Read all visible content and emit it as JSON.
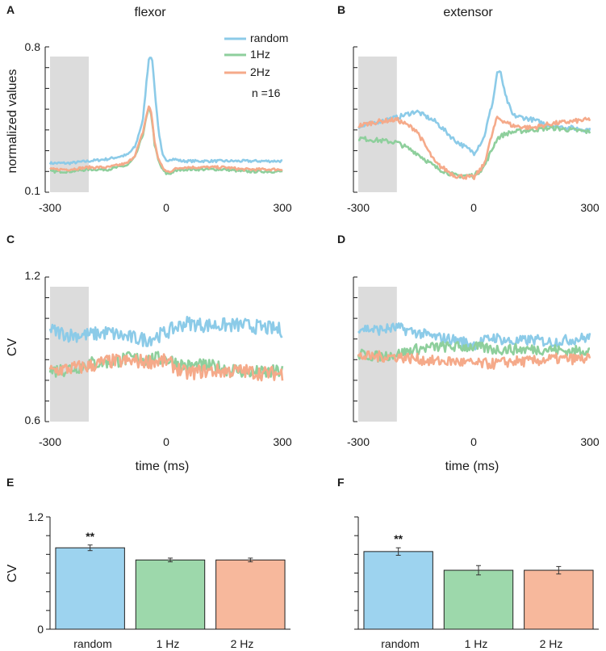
{
  "colors": {
    "random": "#8ccbe8",
    "hz1": "#8ecf9c",
    "hz2": "#f5aa8a",
    "shade": "#dcdcdc",
    "axis": "#1a1a1a",
    "bar_random": "#9dd3ef",
    "bar_1hz": "#9dd8ab",
    "bar_2hz": "#f7b89c"
  },
  "titles": {
    "left": "flexor",
    "right": "extensor"
  },
  "panel_letters": [
    "A",
    "B",
    "C",
    "D",
    "E",
    "F"
  ],
  "legend": {
    "random": "random",
    "hz1": "1Hz",
    "hz2": "2Hz",
    "n": "n =16"
  },
  "ylabels": {
    "top": "normalized values",
    "mid": "CV",
    "bottom": "CV"
  },
  "xlabel_time": "time (ms)",
  "ticks": {
    "x_time": [
      "-300",
      "0",
      "300"
    ],
    "top_y": [
      "0.8",
      "0.1"
    ],
    "mid_y": [
      "1.2",
      "0.6"
    ],
    "bottom_y": [
      "1.2",
      "0"
    ],
    "bar_categories": [
      "random",
      "1 Hz",
      "2 Hz"
    ]
  },
  "chart_data": [
    {
      "id": "A",
      "type": "line",
      "title": "flexor",
      "ylabel": "normalized values",
      "xlim": [
        -300,
        300
      ],
      "ylim": [
        0.1,
        0.8
      ],
      "shaded_region": [
        -300,
        -200
      ],
      "series": [
        {
          "name": "random",
          "x": [
            -300,
            -250,
            -200,
            -150,
            -100,
            -80,
            -60,
            -50,
            -45,
            -40,
            -35,
            -30,
            -20,
            -10,
            0,
            10,
            20,
            40,
            60,
            100,
            150,
            200,
            250,
            300
          ],
          "values": [
            0.24,
            0.24,
            0.25,
            0.26,
            0.28,
            0.32,
            0.45,
            0.65,
            0.74,
            0.76,
            0.72,
            0.6,
            0.4,
            0.28,
            0.25,
            0.26,
            0.26,
            0.25,
            0.25,
            0.25,
            0.25,
            0.25,
            0.25,
            0.25
          ]
        },
        {
          "name": "1Hz",
          "x": [
            -300,
            -250,
            -200,
            -150,
            -100,
            -80,
            -60,
            -50,
            -45,
            -40,
            -35,
            -30,
            -20,
            -10,
            0,
            10,
            20,
            40,
            60,
            100,
            150,
            200,
            250,
            300
          ],
          "values": [
            0.2,
            0.2,
            0.21,
            0.21,
            0.23,
            0.27,
            0.38,
            0.47,
            0.5,
            0.49,
            0.42,
            0.33,
            0.25,
            0.21,
            0.19,
            0.19,
            0.2,
            0.21,
            0.21,
            0.21,
            0.21,
            0.2,
            0.2,
            0.2
          ]
        },
        {
          "name": "2Hz",
          "x": [
            -300,
            -250,
            -200,
            -150,
            -100,
            -80,
            -60,
            -50,
            -45,
            -40,
            -35,
            -30,
            -20,
            -10,
            0,
            10,
            20,
            40,
            60,
            100,
            150,
            200,
            250,
            300
          ],
          "values": [
            0.21,
            0.21,
            0.22,
            0.22,
            0.24,
            0.28,
            0.39,
            0.48,
            0.51,
            0.5,
            0.43,
            0.34,
            0.26,
            0.22,
            0.2,
            0.2,
            0.21,
            0.22,
            0.22,
            0.22,
            0.22,
            0.21,
            0.21,
            0.21
          ]
        }
      ]
    },
    {
      "id": "B",
      "type": "line",
      "title": "extensor",
      "xlim": [
        -300,
        300
      ],
      "ylim": [
        0.1,
        0.8
      ],
      "shaded_region": [
        -300,
        -200
      ],
      "series": [
        {
          "name": "random",
          "x": [
            -300,
            -250,
            -200,
            -150,
            -100,
            -50,
            0,
            25,
            50,
            60,
            70,
            80,
            100,
            150,
            200,
            250,
            300
          ],
          "values": [
            0.41,
            0.44,
            0.46,
            0.49,
            0.44,
            0.35,
            0.29,
            0.36,
            0.55,
            0.68,
            0.67,
            0.57,
            0.47,
            0.45,
            0.42,
            0.41,
            0.4
          ]
        },
        {
          "name": "1Hz",
          "x": [
            -300,
            -250,
            -200,
            -150,
            -100,
            -50,
            0,
            25,
            50,
            60,
            70,
            80,
            100,
            150,
            200,
            250,
            300
          ],
          "values": [
            0.36,
            0.35,
            0.34,
            0.29,
            0.22,
            0.18,
            0.18,
            0.22,
            0.32,
            0.36,
            0.37,
            0.38,
            0.39,
            0.4,
            0.41,
            0.4,
            0.39
          ]
        },
        {
          "name": "2Hz",
          "x": [
            -300,
            -250,
            -200,
            -150,
            -100,
            -50,
            0,
            25,
            50,
            60,
            70,
            80,
            100,
            150,
            200,
            250,
            300
          ],
          "values": [
            0.42,
            0.44,
            0.45,
            0.4,
            0.24,
            0.18,
            0.17,
            0.23,
            0.4,
            0.46,
            0.45,
            0.44,
            0.42,
            0.41,
            0.43,
            0.44,
            0.45
          ]
        }
      ]
    },
    {
      "id": "C",
      "type": "line",
      "ylabel": "CV",
      "xlabel": "time (ms)",
      "xlim": [
        -300,
        300
      ],
      "ylim": [
        0.6,
        1.2
      ],
      "shaded_region": [
        -300,
        -200
      ],
      "series": [
        {
          "name": "random",
          "x": [
            -300,
            -250,
            -200,
            -150,
            -100,
            -50,
            0,
            50,
            100,
            150,
            200,
            250,
            300
          ],
          "values": [
            0.98,
            0.96,
            0.96,
            0.97,
            0.95,
            0.94,
            0.97,
            1.01,
            1.0,
            1.0,
            1.0,
            0.99,
            0.98
          ]
        },
        {
          "name": "1Hz",
          "x": [
            -300,
            -250,
            -200,
            -150,
            -100,
            -50,
            0,
            50,
            100,
            150,
            200,
            250,
            300
          ],
          "values": [
            0.81,
            0.82,
            0.84,
            0.85,
            0.86,
            0.86,
            0.86,
            0.83,
            0.83,
            0.82,
            0.81,
            0.8,
            0.81
          ]
        },
        {
          "name": "2Hz",
          "x": [
            -300,
            -250,
            -200,
            -150,
            -100,
            -50,
            0,
            50,
            100,
            150,
            200,
            250,
            300
          ],
          "values": [
            0.81,
            0.82,
            0.83,
            0.85,
            0.85,
            0.85,
            0.85,
            0.8,
            0.81,
            0.81,
            0.81,
            0.8,
            0.8
          ]
        }
      ]
    },
    {
      "id": "D",
      "type": "line",
      "xlabel": "time (ms)",
      "xlim": [
        -300,
        300
      ],
      "ylim": [
        0.6,
        1.2
      ],
      "shaded_region": [
        -300,
        -200
      ],
      "series": [
        {
          "name": "random",
          "x": [
            -300,
            -250,
            -200,
            -150,
            -100,
            -50,
            0,
            50,
            100,
            150,
            200,
            250,
            300
          ],
          "values": [
            0.99,
            0.98,
            0.99,
            0.97,
            0.95,
            0.94,
            0.92,
            0.95,
            0.93,
            0.94,
            0.93,
            0.94,
            0.95
          ]
        },
        {
          "name": "1Hz",
          "x": [
            -300,
            -250,
            -200,
            -150,
            -100,
            -50,
            0,
            50,
            100,
            150,
            200,
            250,
            300
          ],
          "values": [
            0.88,
            0.87,
            0.88,
            0.9,
            0.91,
            0.91,
            0.91,
            0.9,
            0.9,
            0.9,
            0.9,
            0.89,
            0.9
          ]
        },
        {
          "name": "2Hz",
          "x": [
            -300,
            -250,
            -200,
            -150,
            -100,
            -50,
            0,
            50,
            100,
            150,
            200,
            250,
            300
          ],
          "values": [
            0.87,
            0.87,
            0.87,
            0.86,
            0.85,
            0.85,
            0.84,
            0.84,
            0.85,
            0.85,
            0.86,
            0.86,
            0.86
          ]
        }
      ]
    },
    {
      "id": "E",
      "type": "bar",
      "ylabel": "CV",
      "ylim": [
        0,
        1.2
      ],
      "categories": [
        "random",
        "1 Hz",
        "2 Hz"
      ],
      "values": [
        0.87,
        0.74,
        0.74
      ],
      "errors": [
        0.03,
        0.02,
        0.02
      ],
      "annotations": [
        "**",
        "",
        ""
      ]
    },
    {
      "id": "F",
      "type": "bar",
      "ylim": [
        0,
        1.2
      ],
      "categories": [
        "random",
        "1 Hz",
        "2 Hz"
      ],
      "values": [
        0.83,
        0.63,
        0.63
      ],
      "errors": [
        0.04,
        0.05,
        0.04
      ],
      "annotations": [
        "**",
        "",
        ""
      ]
    }
  ]
}
